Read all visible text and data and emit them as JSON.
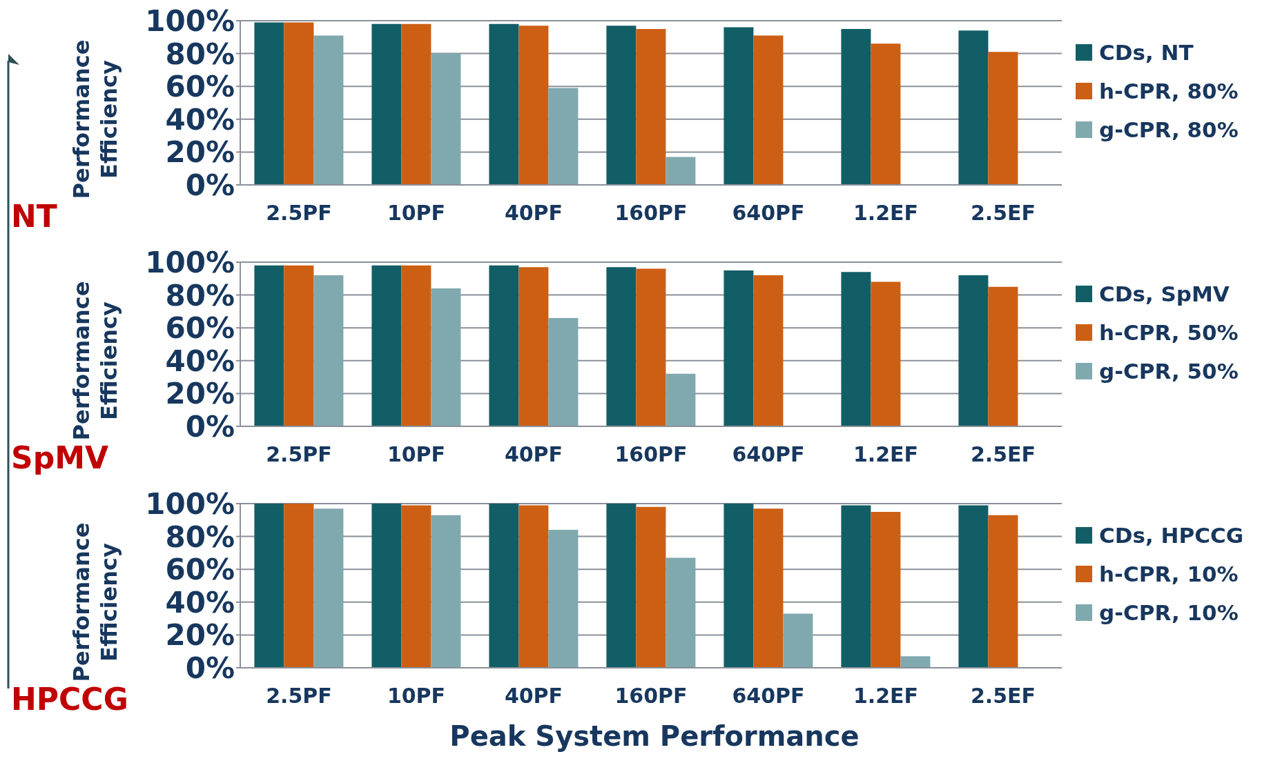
{
  "chart_data": [
    {
      "type": "bar",
      "categories": [
        "2.5PF",
        "10PF",
        "40PF",
        "160PF",
        "640PF",
        "1.2EF",
        "2.5EF"
      ],
      "ylabel": "Performance Efficiency",
      "annotations": [
        "NT"
      ],
      "ylim": [
        0,
        100
      ],
      "yticks": [
        {
          "value": 0,
          "label": "0%"
        },
        {
          "value": 20,
          "label": "20%"
        },
        {
          "value": 40,
          "label": "40%"
        },
        {
          "value": 60,
          "label": "60%"
        },
        {
          "value": 80,
          "label": "80%"
        },
        {
          "value": 100,
          "label": "100%"
        }
      ],
      "grid": "y",
      "legend": "right",
      "series": [
        {
          "name": "CDs, NT",
          "color": "#125e66",
          "values": [
            99,
            98,
            98,
            97,
            96,
            95,
            94
          ]
        },
        {
          "name": "h-CPR, 80%",
          "color": "#cc5f14",
          "values": [
            99,
            98,
            97,
            95,
            91,
            86,
            81
          ]
        },
        {
          "name": "g-CPR, 80%",
          "color": "#80a9af",
          "values": [
            91,
            80,
            59,
            17,
            null,
            null,
            null
          ]
        }
      ]
    },
    {
      "type": "bar",
      "categories": [
        "2.5PF",
        "10PF",
        "40PF",
        "160PF",
        "640PF",
        "1.2EF",
        "2.5EF"
      ],
      "ylabel": "Performance Efficiency",
      "annotations": [
        "SpMV"
      ],
      "ylim": [
        0,
        100
      ],
      "yticks": [
        {
          "value": 0,
          "label": "0%"
        },
        {
          "value": 20,
          "label": "20%"
        },
        {
          "value": 40,
          "label": "40%"
        },
        {
          "value": 60,
          "label": "60%"
        },
        {
          "value": 80,
          "label": "80%"
        },
        {
          "value": 100,
          "label": "100%"
        }
      ],
      "grid": "y",
      "legend": "right",
      "series": [
        {
          "name": "CDs, SpMV",
          "color": "#125e66",
          "values": [
            98,
            98,
            98,
            97,
            95,
            94,
            92
          ]
        },
        {
          "name": "h-CPR, 50%",
          "color": "#cc5f14",
          "values": [
            98,
            98,
            97,
            96,
            92,
            88,
            85
          ]
        },
        {
          "name": "g-CPR, 50%",
          "color": "#80a9af",
          "values": [
            92,
            84,
            66,
            32,
            null,
            null,
            null
          ]
        }
      ]
    },
    {
      "type": "bar",
      "categories": [
        "2.5PF",
        "10PF",
        "40PF",
        "160PF",
        "640PF",
        "1.2EF",
        "2.5EF"
      ],
      "ylabel": "Performance Efficiency",
      "xlabel": "Peak System Performance",
      "annotations": [
        "HPCCG"
      ],
      "ylim": [
        0,
        100
      ],
      "yticks": [
        {
          "value": 0,
          "label": "0%"
        },
        {
          "value": 20,
          "label": "20%"
        },
        {
          "value": 40,
          "label": "40%"
        },
        {
          "value": 60,
          "label": "60%"
        },
        {
          "value": 80,
          "label": "80%"
        },
        {
          "value": 100,
          "label": "100%"
        }
      ],
      "grid": "y",
      "legend": "right",
      "series": [
        {
          "name": "CDs, HPCCG",
          "color": "#125e66",
          "values": [
            100,
            100,
            100,
            100,
            100,
            99,
            99
          ]
        },
        {
          "name": "h-CPR, 10%",
          "color": "#cc5f14",
          "values": [
            100,
            99,
            99,
            98,
            97,
            95,
            93
          ]
        },
        {
          "name": "g-CPR, 10%",
          "color": "#80a9af",
          "values": [
            97,
            93,
            84,
            67,
            33,
            7,
            null
          ]
        }
      ]
    }
  ]
}
